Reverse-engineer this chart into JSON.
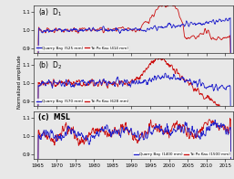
{
  "title_a": "(a)  D$_1$",
  "title_b": "(b)  D$_2$",
  "title_c": "(c)  MSL",
  "ylabel": "Normalized amplitude",
  "xlabel_ticks": [
    1965,
    1970,
    1975,
    1980,
    1985,
    1990,
    1995,
    2000,
    2005,
    2010,
    2015
  ],
  "xlim": [
    1964,
    2017
  ],
  "ylim": [
    0.875,
    1.135
  ],
  "yticks": [
    0.9,
    1.0,
    1.1
  ],
  "blue_color": "#2222cc",
  "red_color": "#cc1111",
  "legend_a_blue": "Quarry Bay (525 mm)",
  "legend_a_red": "Tai Po Kau (414 mm)",
  "legend_b_blue": "Quarry Bay (570 mm)",
  "legend_b_red": "Tai Po Kau (628 mm)",
  "legend_c_blue": "Quarry Bay (1400 mm)",
  "legend_c_red": "Tai Po Kau (1500 mm)",
  "bg_color": "#e8e8e8",
  "seed": 42
}
